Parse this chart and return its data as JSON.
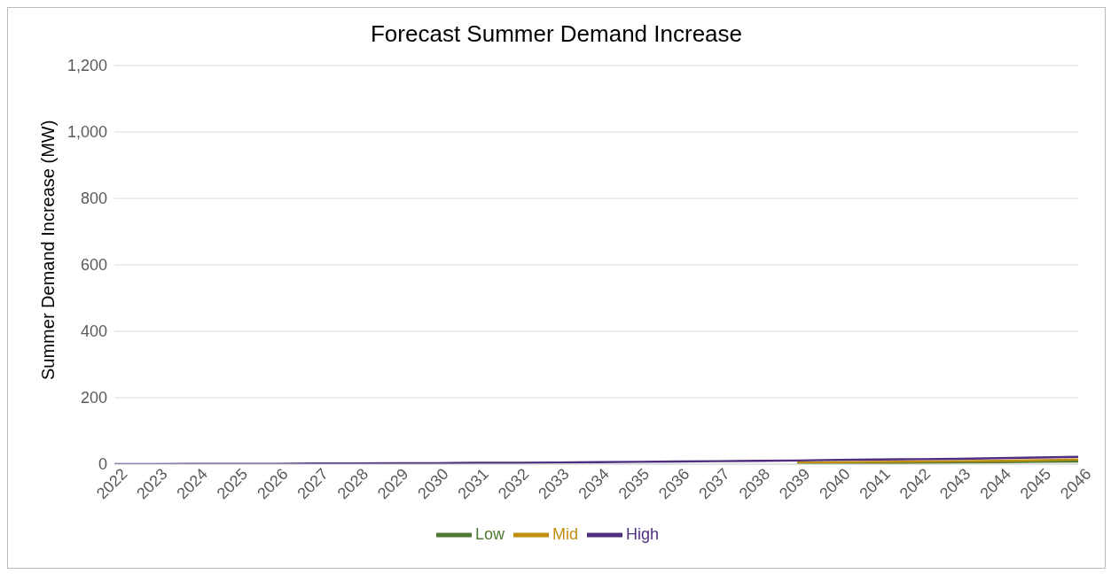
{
  "chart_data": {
    "type": "line",
    "title": "Forecast Summer Demand Increase",
    "ylabel": "Summer Demand Increase (MW)",
    "categories": [
      "2022",
      "2023",
      "2024",
      "2025",
      "2026",
      "2027",
      "2028",
      "2029",
      "2030",
      "2031",
      "2032",
      "2033",
      "2034",
      "2035",
      "2036",
      "2037",
      "2038",
      "2039",
      "2040",
      "2041",
      "2042",
      "2043",
      "2044",
      "2045",
      "2046"
    ],
    "series": [
      {
        "name": "Low",
        "color": "#4f7a33",
        "values": [
          null,
          null,
          null,
          null,
          null,
          null,
          null,
          null,
          null,
          null,
          null,
          null,
          null,
          null,
          null,
          null,
          null,
          1,
          2,
          3,
          4,
          5,
          6,
          7,
          8
        ]
      },
      {
        "name": "Mid",
        "color": "#c28e0e",
        "values": [
          null,
          null,
          null,
          null,
          null,
          null,
          null,
          null,
          null,
          null,
          null,
          null,
          null,
          null,
          null,
          null,
          null,
          5,
          6,
          7,
          8,
          9,
          10,
          12,
          14
        ]
      },
      {
        "name": "High",
        "color": "#4f2d7f",
        "values": [
          0,
          0,
          1,
          1,
          1,
          2,
          2,
          3,
          3,
          4,
          4,
          5,
          6,
          7,
          8,
          9,
          10,
          11,
          13,
          14,
          15,
          16,
          18,
          20,
          22
        ]
      }
    ],
    "ylim": [
      0,
      1200
    ],
    "yticks": [
      0,
      200,
      400,
      600,
      800,
      {
        "value": 1000,
        "label": "1,000"
      },
      {
        "value": 1200,
        "label": "1,200"
      }
    ],
    "grid": "y",
    "legend": "bottom",
    "marker": "none",
    "line_style": "solid"
  }
}
